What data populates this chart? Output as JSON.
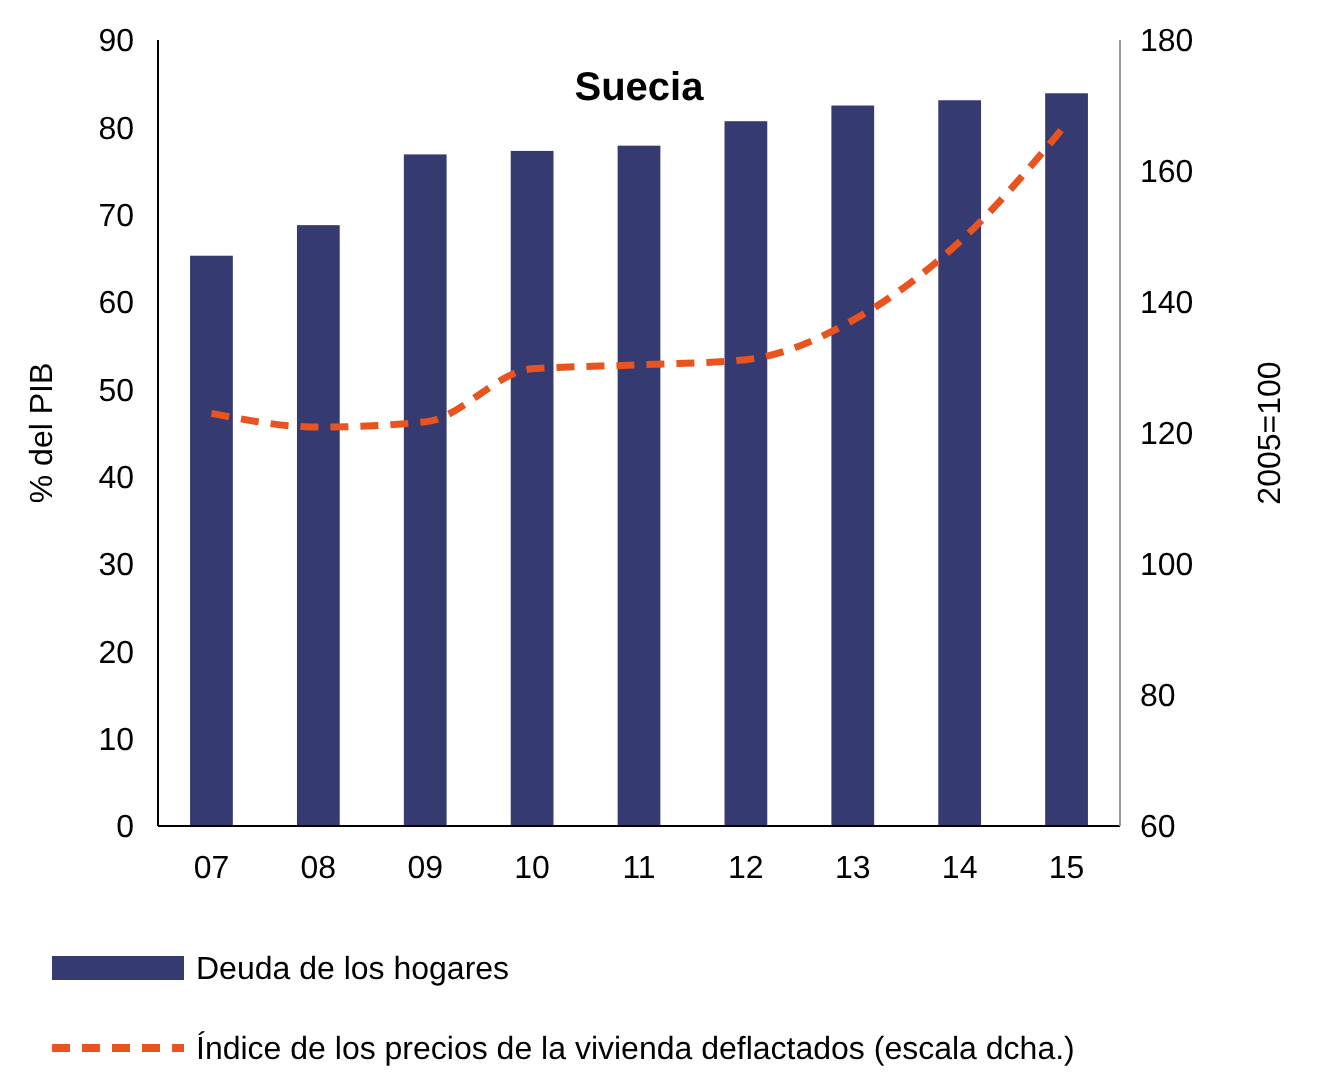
{
  "chart_data": {
    "type": "bar",
    "title": "Suecia",
    "ylabel": "% del PIB",
    "y2label": "2005=100",
    "categories": [
      "07",
      "08",
      "09",
      "10",
      "11",
      "12",
      "13",
      "14",
      "15"
    ],
    "series": [
      {
        "name": "Deuda de los hogares",
        "color": "#353a70",
        "values": [
          65.3,
          68.8,
          76.9,
          77.3,
          77.9,
          80.7,
          82.5,
          83.1,
          83.9
        ]
      },
      {
        "name": "Índice de los precios de la vivienda deflactados (escala dcha.)",
        "type": "line",
        "axis": "y2",
        "line_style": "dashed",
        "color": "#e8531f",
        "values": [
          123.0,
          120.9,
          121.7,
          129.8,
          130.4,
          131.2,
          137.2,
          149.2,
          167.2
        ]
      }
    ],
    "ylim": [
      0,
      90
    ],
    "yticks": [
      0,
      10,
      20,
      30,
      40,
      50,
      60,
      70,
      80,
      90
    ],
    "y2lim": [
      60,
      180
    ],
    "y2ticks": [
      60,
      80,
      100,
      120,
      140,
      160,
      180
    ],
    "grid": false,
    "legend": "bottom"
  }
}
